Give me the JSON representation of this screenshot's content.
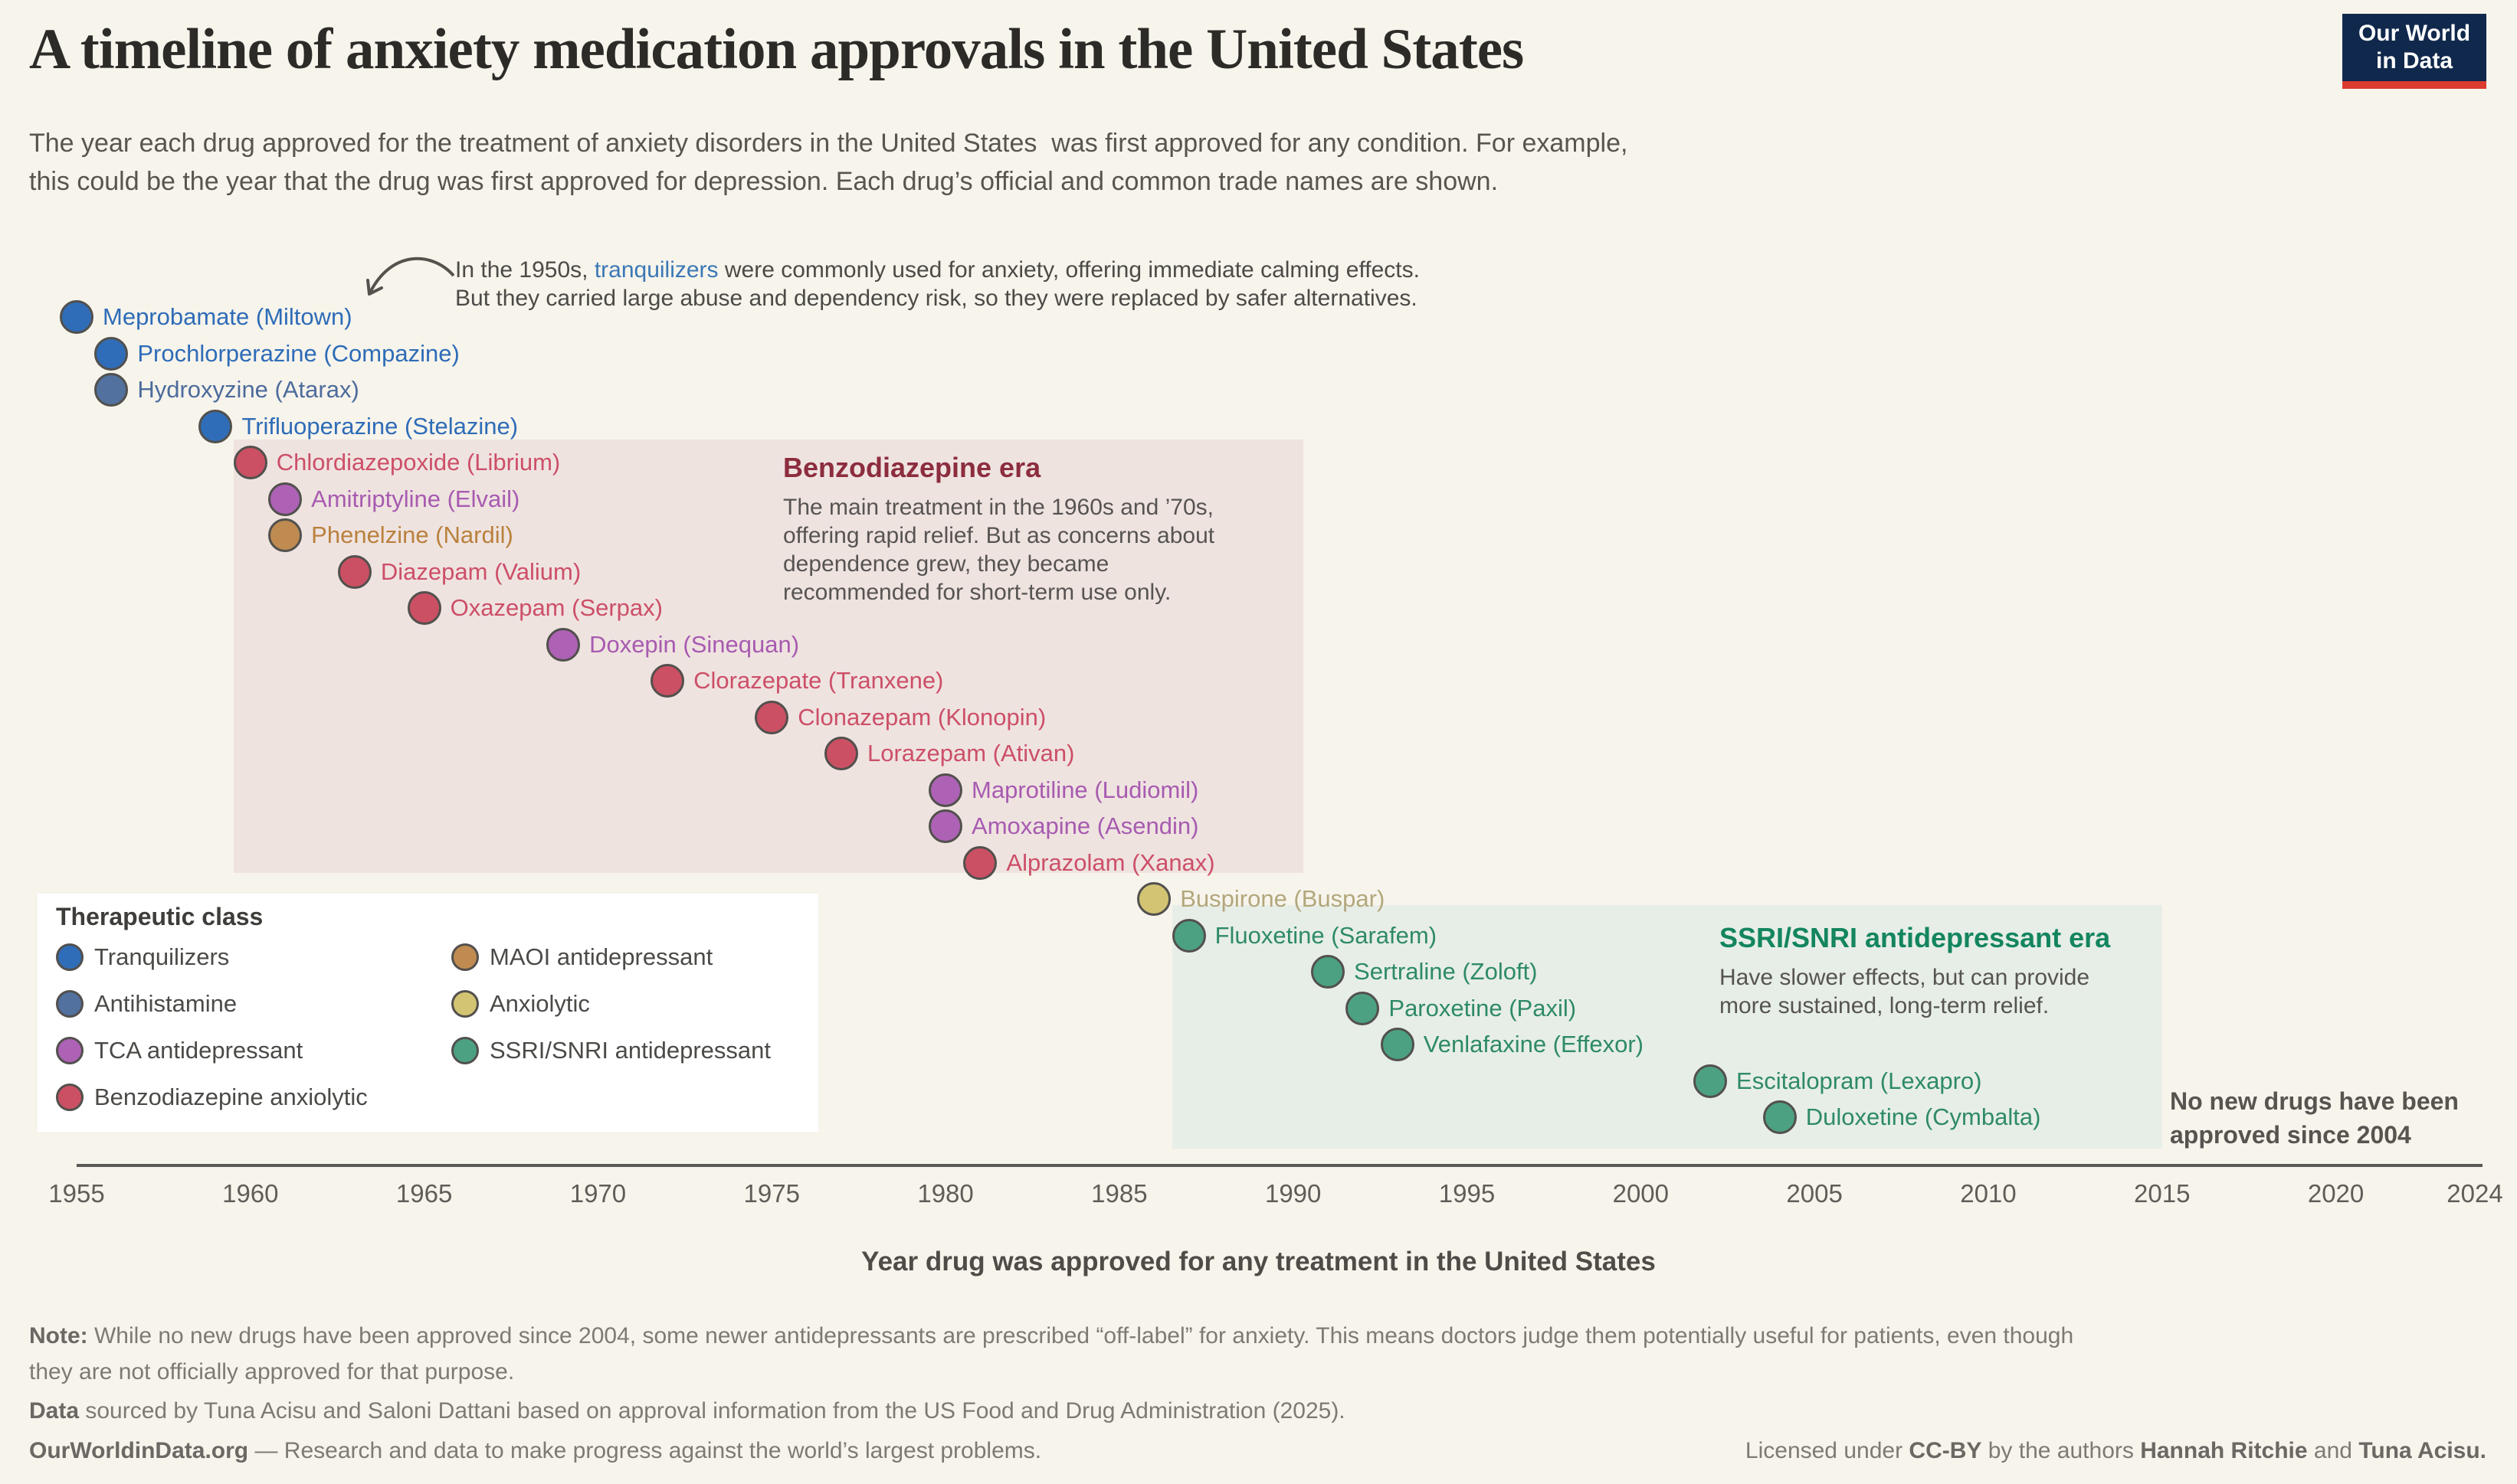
{
  "header": {
    "title": "A timeline of anxiety medication approvals in the United States",
    "subtitle_line1": "The year each drug approved for the treatment of anxiety disorders in the United States  was first approved for any condition. For example,",
    "subtitle_line2": "this could be the year that the drug was first approved for depression. Each drug’s official and common trade names are shown.",
    "logo_line1": "Our World",
    "logo_line2": "in Data",
    "logo_bg": "#10284c",
    "logo_accent": "#dc3b2f"
  },
  "annotation": {
    "pre": "In the 1950s, ",
    "link": "tranquilizers",
    "post": " were commonly used for anxiety, offering immediate calming effects.",
    "line2": "But they carried large abuse and dependency risk, so they were replaced by safer alternatives.",
    "link_color": "#3b77b5"
  },
  "classes": {
    "tranquilizer": {
      "label": "Tranquilizers",
      "color": "#2f6db8",
      "text": "#2e6cb7"
    },
    "antihistamine": {
      "label": "Antihistamine",
      "color": "#52719f",
      "text": "#4d6c9c"
    },
    "tca": {
      "label": "TCA antidepressant",
      "color": "#ad62b5",
      "text": "#a75bb0"
    },
    "benzodiazepine": {
      "label": "Benzodiazepine anxiolytic",
      "color": "#cb5063",
      "text": "#cc4f68"
    },
    "maoi": {
      "label": "MAOI antidepressant",
      "color": "#bf8b50",
      "text": "#b9813d"
    },
    "anxiolytic": {
      "label": "Anxiolytic",
      "color": "#d2c473",
      "text": "#b2a77c"
    },
    "ssri": {
      "label": "SSRI/SNRI antidepressant",
      "color": "#4ca183",
      "text": "#2e8a68"
    }
  },
  "legend": {
    "title": "Therapeutic class",
    "columns": [
      [
        "tranquilizer",
        "antihistamine",
        "tca",
        "benzodiazepine"
      ],
      [
        "maoi",
        "anxiolytic",
        "ssri"
      ]
    ]
  },
  "chart_data": {
    "type": "scatter",
    "title": "A timeline of anxiety medication approvals in the United States",
    "xlabel": "Year drug was approved for any treatment in the United States",
    "ylabel": "",
    "x_range": [
      1955,
      2024
    ],
    "x_ticks": [
      1955,
      1960,
      1965,
      1970,
      1975,
      1980,
      1985,
      1990,
      1995,
      2000,
      2005,
      2010,
      2015,
      2020,
      2024
    ],
    "grid": false,
    "points": [
      {
        "label": "Meprobamate (Miltown)",
        "year": 1955,
        "class": "tranquilizer"
      },
      {
        "label": "Prochlorperazine (Compazine)",
        "year": 1956,
        "class": "tranquilizer"
      },
      {
        "label": "Hydroxyzine (Atarax)",
        "year": 1956,
        "class": "antihistamine"
      },
      {
        "label": "Trifluoperazine (Stelazine)",
        "year": 1959,
        "class": "tranquilizer"
      },
      {
        "label": "Chlordiazepoxide (Librium)",
        "year": 1960,
        "class": "benzodiazepine"
      },
      {
        "label": "Amitriptyline (Elvail)",
        "year": 1961,
        "class": "tca"
      },
      {
        "label": "Phenelzine (Nardil)",
        "year": 1961,
        "class": "maoi"
      },
      {
        "label": "Diazepam (Valium)",
        "year": 1963,
        "class": "benzodiazepine"
      },
      {
        "label": "Oxazepam (Serpax)",
        "year": 1965,
        "class": "benzodiazepine"
      },
      {
        "label": "Doxepin (Sinequan)",
        "year": 1969,
        "class": "tca"
      },
      {
        "label": "Clorazepate (Tranxene)",
        "year": 1972,
        "class": "benzodiazepine"
      },
      {
        "label": "Clonazepam (Klonopin)",
        "year": 1975,
        "class": "benzodiazepine"
      },
      {
        "label": "Lorazepam (Ativan)",
        "year": 1977,
        "class": "benzodiazepine"
      },
      {
        "label": "Maprotiline (Ludiomil)",
        "year": 1980,
        "class": "tca"
      },
      {
        "label": "Amoxapine (Asendin)",
        "year": 1980,
        "class": "tca"
      },
      {
        "label": "Alprazolam (Xanax)",
        "year": 1981,
        "class": "benzodiazepine"
      },
      {
        "label": "Buspirone (Buspar)",
        "year": 1986,
        "class": "anxiolytic"
      },
      {
        "label": "Fluoxetine (Sarafem)",
        "year": 1987,
        "class": "ssri"
      },
      {
        "label": "Sertraline (Zoloft)",
        "year": 1991,
        "class": "ssri"
      },
      {
        "label": "Paroxetine (Paxil)",
        "year": 1992,
        "class": "ssri"
      },
      {
        "label": "Venlafaxine (Effexor)",
        "year": 1993,
        "class": "ssri"
      },
      {
        "label": "Escitalopram (Lexapro)",
        "year": 2002,
        "class": "ssri"
      },
      {
        "label": "Duloxetine (Cymbalta)",
        "year": 2004,
        "class": "ssri"
      }
    ],
    "eras": [
      {
        "name": "Benzodiazepine era",
        "title_color": "#8c2d3e",
        "box_color": "#efe3e0",
        "description": [
          "The main treatment in the 1960s and ’70s,",
          "offering rapid relief. But as concerns about",
          "dependence grew, they became",
          "recommended for short-term use only."
        ]
      },
      {
        "name": "SSRI/SNRI antidepressant era",
        "title_color": "#13855f",
        "box_color": "#e7eee7",
        "description": [
          "Have slower effects, but can provide",
          "more sustained, long-term relief."
        ]
      }
    ],
    "right_note_line1": "No new drugs have been",
    "right_note_line2": "approved since 2004"
  },
  "footer": {
    "note_label": "Note:",
    "note_line1": " While no new drugs have been approved since 2004, some newer antidepressants are prescribed “off-label” for anxiety. This means doctors judge them potentially useful for patients, even though",
    "note_line2": "they are not officially approved for that purpose.",
    "data_label": "Data",
    "data_text": " sourced by Tuna Acisu and Saloni Dattani based on approval information from the US Food and Drug Administration (2025).",
    "site_label": "OurWorldinData.org",
    "site_text": " — Research and data to make progress against the world’s largest problems.",
    "license_pre": "Licensed under ",
    "license_cc": "CC-BY",
    "license_mid": " by the authors ",
    "license_author1": "Hannah Ritchie",
    "license_and": " and ",
    "license_author2": "Tuna Acisu."
  }
}
